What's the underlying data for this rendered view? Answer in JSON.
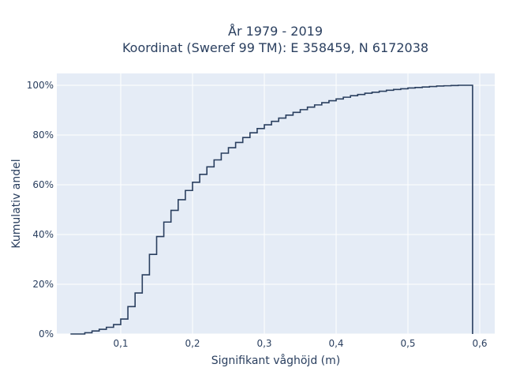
{
  "chart_data": {
    "type": "line",
    "subtype": "cumulative-step",
    "title": "År 1979 - 2019",
    "subtitle": "Koordinat (Sweref 99 TM): E 358459, N 6172038",
    "xlabel": "Signifikant våghöjd (m)",
    "ylabel": "Kumulativ andel",
    "xlim": [
      0.01,
      0.615
    ],
    "ylim": [
      0,
      1.02
    ],
    "x_ticks": [
      0.1,
      0.2,
      0.3,
      0.4,
      0.5,
      0.6
    ],
    "x_tick_labels": [
      "0,1",
      "0,2",
      "0,3",
      "0,4",
      "0,5",
      "0,6"
    ],
    "y_ticks": [
      0,
      0.2,
      0.4,
      0.6,
      0.8,
      1.0
    ],
    "y_tick_labels": [
      "0%",
      "20%",
      "40%",
      "60%",
      "80%",
      "100%"
    ],
    "grid": true,
    "background": "#e5ecf6",
    "line_color": "#2a3f5f",
    "series": [
      {
        "x": [
          0.03,
          0.04,
          0.05,
          0.06,
          0.07,
          0.08,
          0.09,
          0.1,
          0.11,
          0.12,
          0.13,
          0.14,
          0.15,
          0.16,
          0.17,
          0.18,
          0.19,
          0.2,
          0.21,
          0.22,
          0.23,
          0.24,
          0.25,
          0.26,
          0.27,
          0.28,
          0.29,
          0.3,
          0.31,
          0.32,
          0.33,
          0.34,
          0.35,
          0.36,
          0.37,
          0.38,
          0.39,
          0.4,
          0.41,
          0.42,
          0.43,
          0.44,
          0.45,
          0.46,
          0.47,
          0.48,
          0.49,
          0.5,
          0.51,
          0.52,
          0.53,
          0.54,
          0.55,
          0.56,
          0.57,
          0.58,
          0.59
        ],
        "y": [
          0.0,
          0.0,
          0.005,
          0.012,
          0.019,
          0.027,
          0.038,
          0.06,
          0.11,
          0.165,
          0.238,
          0.32,
          0.392,
          0.45,
          0.497,
          0.54,
          0.577,
          0.61,
          0.642,
          0.672,
          0.7,
          0.727,
          0.749,
          0.77,
          0.79,
          0.809,
          0.826,
          0.841,
          0.855,
          0.868,
          0.88,
          0.891,
          0.902,
          0.912,
          0.921,
          0.93,
          0.938,
          0.945,
          0.952,
          0.958,
          0.963,
          0.968,
          0.972,
          0.976,
          0.98,
          0.983,
          0.986,
          0.989,
          0.991,
          0.993,
          0.995,
          0.997,
          0.998,
          0.999,
          1.0,
          1.0,
          1.0
        ]
      }
    ]
  }
}
